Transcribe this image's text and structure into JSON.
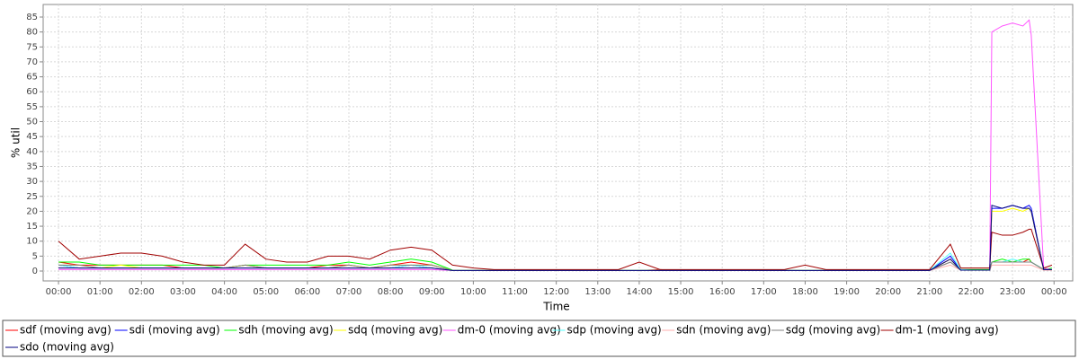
{
  "chart_data": {
    "type": "line",
    "x_label": "Time",
    "y_label": "% util",
    "x": [
      0,
      0.5,
      1,
      1.5,
      2,
      2.5,
      3,
      3.5,
      4,
      4.5,
      5,
      5.5,
      6,
      6.5,
      7,
      7.5,
      8,
      8.5,
      9,
      9.5,
      10,
      10.5,
      11,
      11.5,
      12,
      12.5,
      13,
      13.5,
      14,
      14.5,
      15,
      15.5,
      16,
      16.5,
      17,
      17.5,
      18,
      18.5,
      19,
      19.5,
      20,
      20.5,
      21,
      21.5,
      21.75,
      22,
      22.25,
      22.45,
      22.5,
      22.75,
      23,
      23.25,
      23.4,
      23.45,
      23.75,
      23.95
    ],
    "xlim": [
      -0.37,
      24.45
    ],
    "xticks": [
      {
        "value": 0,
        "label": "00:00"
      },
      {
        "value": 1,
        "label": "01:00"
      },
      {
        "value": 2,
        "label": "02:00"
      },
      {
        "value": 3,
        "label": "03:00"
      },
      {
        "value": 4,
        "label": "04:00"
      },
      {
        "value": 5,
        "label": "05:00"
      },
      {
        "value": 6,
        "label": "06:00"
      },
      {
        "value": 7,
        "label": "07:00"
      },
      {
        "value": 8,
        "label": "08:00"
      },
      {
        "value": 9,
        "label": "09:00"
      },
      {
        "value": 10,
        "label": "10:00"
      },
      {
        "value": 11,
        "label": "11:00"
      },
      {
        "value": 12,
        "label": "12:00"
      },
      {
        "value": 13,
        "label": "13:00"
      },
      {
        "value": 14,
        "label": "14:00"
      },
      {
        "value": 15,
        "label": "15:00"
      },
      {
        "value": 16,
        "label": "16:00"
      },
      {
        "value": 17,
        "label": "17:00"
      },
      {
        "value": 18,
        "label": "18:00"
      },
      {
        "value": 19,
        "label": "19:00"
      },
      {
        "value": 20,
        "label": "20:00"
      },
      {
        "value": 21,
        "label": "21:00"
      },
      {
        "value": 22,
        "label": "22:00"
      },
      {
        "value": 23,
        "label": "23:00"
      },
      {
        "value": 24,
        "label": "00:00"
      }
    ],
    "ylim": [
      -3.3,
      89.2
    ],
    "yticks": [
      0,
      5,
      10,
      15,
      20,
      25,
      30,
      35,
      40,
      45,
      50,
      55,
      60,
      65,
      70,
      75,
      80,
      85
    ],
    "grid": true,
    "legend": "bottom",
    "series": [
      {
        "name": "sdf (moving avg)",
        "color": "#ff0000",
        "values": [
          3,
          2,
          2,
          2,
          2,
          2,
          1,
          1,
          1,
          2,
          1,
          1,
          1,
          2,
          2,
          1,
          2,
          3,
          2,
          0.2,
          0.2,
          0.2,
          0.2,
          0.2,
          0.2,
          0.2,
          0.2,
          0.2,
          0.2,
          0.5,
          0.2,
          0.2,
          0.2,
          0.2,
          0.2,
          0.2,
          0.2,
          0.2,
          0.2,
          0.2,
          0.2,
          0.2,
          0.2,
          4,
          0.5,
          0.5,
          0.5,
          0.5,
          3,
          3,
          3,
          3,
          4,
          3,
          0.5,
          0.5
        ]
      },
      {
        "name": "sdi (moving avg)",
        "color": "#0000ff",
        "values": [
          2,
          1,
          1,
          1,
          1,
          1,
          1,
          1,
          1,
          1,
          1,
          1,
          1,
          1,
          1,
          1,
          1,
          2,
          1,
          0.2,
          0.2,
          0.2,
          0.2,
          0.2,
          0.2,
          0.2,
          0.2,
          0.2,
          0.2,
          0.2,
          0.2,
          0.2,
          0.2,
          0.2,
          0.2,
          0.2,
          0.2,
          0.2,
          0.2,
          0.2,
          0.2,
          0.2,
          0.2,
          5,
          0.3,
          0.3,
          0.3,
          0.3,
          21,
          21,
          22,
          21,
          22,
          21,
          0.5,
          0.5
        ]
      },
      {
        "name": "sdh (moving avg)",
        "color": "#00ff00",
        "values": [
          3,
          3,
          2,
          2,
          2,
          2,
          2,
          2,
          1,
          2,
          2,
          2,
          2,
          2,
          3,
          2,
          3,
          4,
          3,
          0.3,
          0.3,
          0.3,
          0.3,
          0.3,
          0.3,
          0.3,
          0.3,
          0.3,
          0.3,
          0.3,
          0.3,
          0.3,
          0.3,
          0.3,
          0.3,
          0.3,
          0.3,
          0.3,
          0.3,
          0.3,
          0.3,
          0.3,
          0.3,
          3,
          0.5,
          0.5,
          0.5,
          0.5,
          3,
          4,
          3,
          4,
          4,
          3,
          0.5,
          1
        ]
      },
      {
        "name": "sdq (moving avg)",
        "color": "#ffff00",
        "values": [
          2,
          2,
          1,
          2,
          1,
          1,
          1,
          1,
          1,
          2,
          1,
          1,
          1,
          1,
          2,
          1,
          2,
          2,
          2,
          0.2,
          0.2,
          0.2,
          0.2,
          0.2,
          0.2,
          0.2,
          0.2,
          0.2,
          0.2,
          0.2,
          0.2,
          0.2,
          0.2,
          0.2,
          0.2,
          0.2,
          0.2,
          0.2,
          0.2,
          0.2,
          0.2,
          0.2,
          0.2,
          4,
          0.3,
          0.3,
          0.3,
          0.3,
          20,
          20,
          21,
          20,
          21,
          20,
          0.5,
          0.5
        ]
      },
      {
        "name": "dm-0 (moving avg)",
        "color": "#ff55ff",
        "values": [
          0.5,
          0.5,
          0.5,
          0.5,
          0.5,
          0.5,
          0.5,
          0.5,
          0.5,
          0.5,
          0.5,
          0.5,
          0.5,
          0.5,
          0.5,
          0.5,
          0.5,
          0.5,
          0.5,
          0.2,
          0.2,
          0.2,
          0.2,
          0.2,
          0.2,
          0.2,
          0.2,
          0.2,
          0.2,
          0.2,
          0.2,
          0.2,
          0.2,
          0.2,
          0.2,
          0.2,
          0.2,
          0.2,
          0.2,
          0.2,
          0.2,
          0.2,
          0.2,
          3,
          0.3,
          0.3,
          0.3,
          0.3,
          80,
          82,
          83,
          82,
          84,
          79,
          1,
          0.5
        ]
      },
      {
        "name": "sdp (moving avg)",
        "color": "#55ffff",
        "values": [
          2,
          1,
          1,
          1,
          1,
          1,
          1,
          1,
          1,
          1,
          1,
          1,
          1,
          1,
          1,
          1,
          1,
          2,
          1,
          0.2,
          0.2,
          0.2,
          0.2,
          0.2,
          0.2,
          0.2,
          0.2,
          0.2,
          0.2,
          0.2,
          0.2,
          0.2,
          0.2,
          0.2,
          0.2,
          0.2,
          0.2,
          0.2,
          0.2,
          0.2,
          0.2,
          0.2,
          0.2,
          6,
          0.5,
          0.3,
          0.3,
          0.3,
          3,
          3,
          4,
          3,
          3,
          3,
          0.5,
          0.5
        ]
      },
      {
        "name": "sdn (moving avg)",
        "color": "#ffafaf",
        "values": [
          1,
          1,
          1,
          1,
          1,
          1,
          1,
          1,
          1,
          1,
          1,
          1,
          1,
          1,
          1,
          1,
          1,
          1,
          1,
          0.2,
          0.2,
          0.2,
          0.2,
          0.2,
          0.2,
          0.2,
          0.2,
          0.2,
          0.2,
          0.2,
          0.2,
          0.2,
          0.2,
          0.2,
          0.2,
          0.2,
          0.2,
          0.2,
          0.2,
          0.2,
          0.2,
          0.2,
          0.2,
          2,
          0.3,
          0.3,
          0.3,
          0.3,
          2,
          2,
          2,
          2,
          2,
          2,
          0.3,
          0.3
        ]
      },
      {
        "name": "sdg (moving avg)",
        "color": "#808080",
        "values": [
          2,
          2,
          1,
          1,
          1,
          1,
          1,
          1,
          1,
          2,
          1,
          1,
          1,
          1,
          2,
          1,
          2,
          2,
          2,
          0.2,
          0.2,
          0.2,
          0.2,
          0.2,
          0.2,
          0.2,
          0.2,
          0.2,
          0.2,
          0.2,
          0.2,
          0.2,
          0.2,
          0.2,
          0.2,
          0.2,
          0.2,
          0.2,
          0.2,
          0.2,
          0.2,
          0.2,
          0.2,
          3,
          0.3,
          0.3,
          0.3,
          0.3,
          3,
          3,
          3,
          3,
          3,
          3,
          0.5,
          0.5
        ]
      },
      {
        "name": "dm-1 (moving avg)",
        "color": "#a00000",
        "values": [
          10,
          4,
          5,
          6,
          6,
          5,
          3,
          2,
          2,
          9,
          4,
          3,
          3,
          5,
          5,
          4,
          7,
          8,
          7,
          2,
          1,
          0.5,
          0.5,
          0.5,
          0.5,
          0.5,
          0.5,
          0.5,
          3,
          0.5,
          0.5,
          0.5,
          0.5,
          0.5,
          0.5,
          0.5,
          2,
          0.5,
          0.5,
          0.5,
          0.5,
          0.5,
          0.5,
          9,
          1,
          1,
          1,
          1,
          13,
          12,
          12,
          13,
          14,
          14,
          1,
          2
        ]
      },
      {
        "name": "sdo (moving avg)",
        "color": "#000080",
        "values": [
          1,
          1,
          1,
          1,
          1,
          1,
          1,
          1,
          1,
          1,
          1,
          1,
          1,
          1,
          1,
          1,
          1,
          1,
          1,
          0.2,
          0.2,
          0.2,
          0.2,
          0.2,
          0.2,
          0.2,
          0.2,
          0.2,
          0.2,
          0.2,
          0.2,
          0.2,
          0.2,
          0.2,
          0.2,
          0.2,
          0.2,
          0.2,
          0.2,
          0.2,
          0.2,
          0.2,
          0.2,
          4,
          0.3,
          0.3,
          0.3,
          0.3,
          22,
          21,
          22,
          21,
          21,
          20,
          0.5,
          0.5
        ]
      }
    ]
  }
}
